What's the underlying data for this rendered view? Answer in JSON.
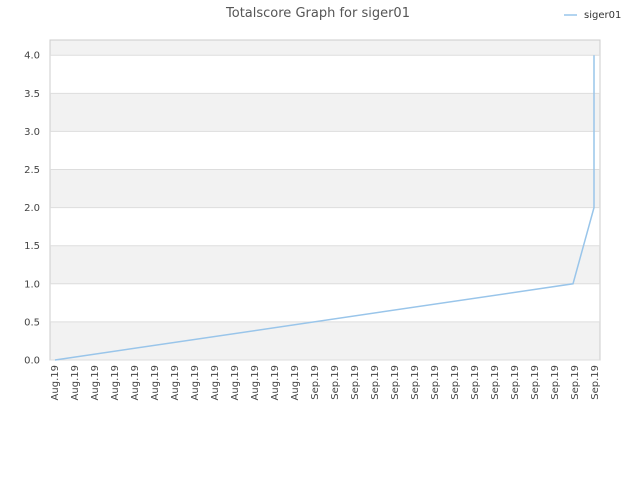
{
  "chart_data": {
    "type": "line",
    "title": "Totalscore Graph for siger01",
    "xlabel": "",
    "ylabel": "",
    "ylim": [
      0,
      4.2
    ],
    "yticks": [
      "0.0",
      "0.5",
      "1.0",
      "1.5",
      "2.0",
      "2.5",
      "3.0",
      "3.5",
      "4.0"
    ],
    "ytick_values": [
      0,
      0.5,
      1.0,
      1.5,
      2.0,
      2.5,
      3.0,
      3.5,
      4.0
    ],
    "categories": [
      "Aug.19",
      "Aug.19",
      "Aug.19",
      "Aug.19",
      "Aug.19",
      "Aug.19",
      "Aug.19",
      "Aug.19",
      "Aug.19",
      "Aug.19",
      "Aug.19",
      "Aug.19",
      "Aug.19",
      "Sep.19",
      "Sep.19",
      "Sep.19",
      "Sep.19",
      "Sep.19",
      "Sep.19",
      "Sep.19",
      "Sep.19",
      "Sep.19",
      "Sep.19",
      "Sep.19",
      "Sep.19",
      "Sep.19",
      "Sep.19",
      "Sep.19"
    ],
    "grid": "horizontal alternating bands",
    "legend_position": "top-right",
    "series": [
      {
        "name": "siger01",
        "color": "#99c5ea",
        "points": [
          {
            "x": 0,
            "y": 0
          },
          {
            "x": 25.9,
            "y": 1.0
          },
          {
            "x": 26.95,
            "y": 2.0
          },
          {
            "x": 26.95,
            "y": 4.0
          }
        ]
      }
    ]
  },
  "colors": {
    "band": "#f2f2f2",
    "grid": "#dddddd",
    "axis": "#cccccc"
  }
}
